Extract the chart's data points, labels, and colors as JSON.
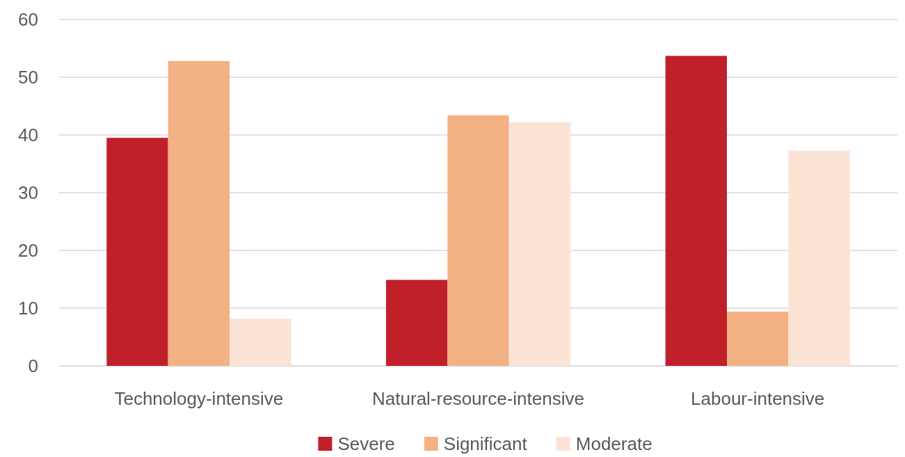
{
  "chart_data": {
    "type": "bar",
    "categories": [
      "Technology-intensive",
      "Natural-resource-intensive",
      "Labour-intensive"
    ],
    "series": [
      {
        "name": "Severe",
        "color": "#c0202a",
        "values": [
          39.5,
          14.9,
          53.7
        ]
      },
      {
        "name": "Significant",
        "color": "#f4b183",
        "values": [
          52.8,
          43.4,
          9.4
        ]
      },
      {
        "name": "Moderate",
        "color": "#fbe3d6",
        "values": [
          8.2,
          42.2,
          37.3
        ]
      }
    ],
    "ylim": [
      0,
      60
    ],
    "yticks": [
      0,
      10,
      20,
      30,
      40,
      50,
      60
    ],
    "grid": "y",
    "legend": "bottom"
  }
}
